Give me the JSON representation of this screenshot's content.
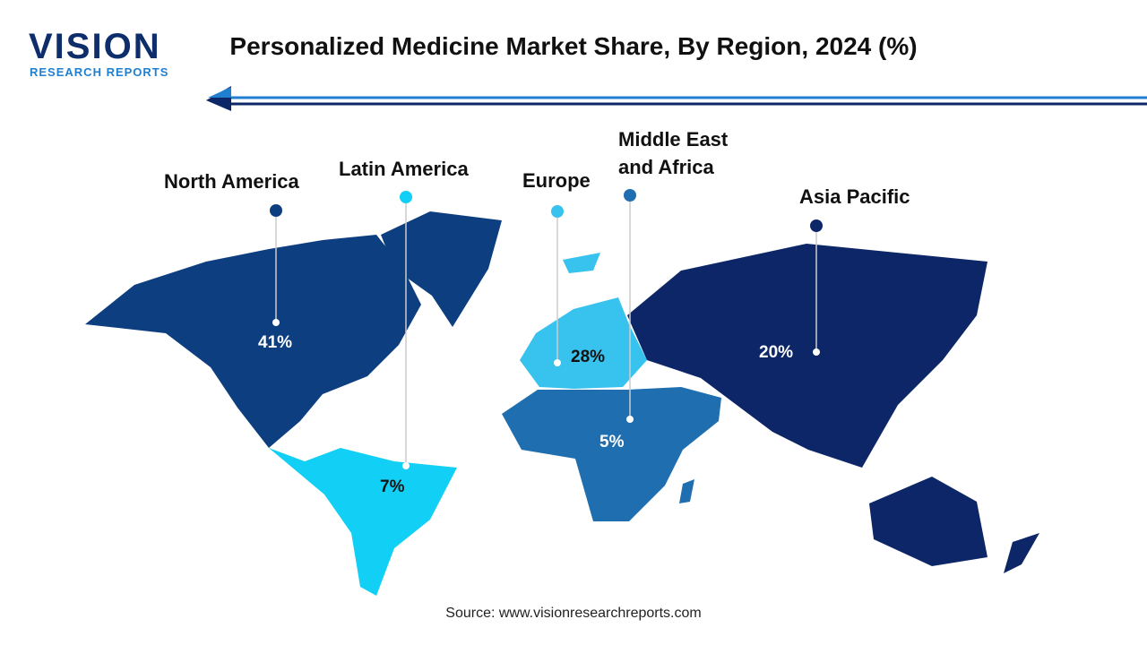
{
  "logo": {
    "name": "VISION",
    "tagline": "RESEARCH REPORTS"
  },
  "chart_data": {
    "type": "map",
    "title": "Personalized Medicine Market Share, By Region, 2024 (%)",
    "categories": [
      "North America",
      "Latin America",
      "Europe",
      "Middle East and Africa",
      "Asia Pacific"
    ],
    "values": [
      41,
      7,
      28,
      5,
      20
    ],
    "value_labels": [
      "41%",
      "7%",
      "28%",
      "5%",
      "20%"
    ],
    "colors": [
      "#0d3f80",
      "#12d0f5",
      "#38c2ee",
      "#1f6eb0",
      "#0c2667"
    ],
    "source": "Source: www.visionresearchreports.com"
  }
}
